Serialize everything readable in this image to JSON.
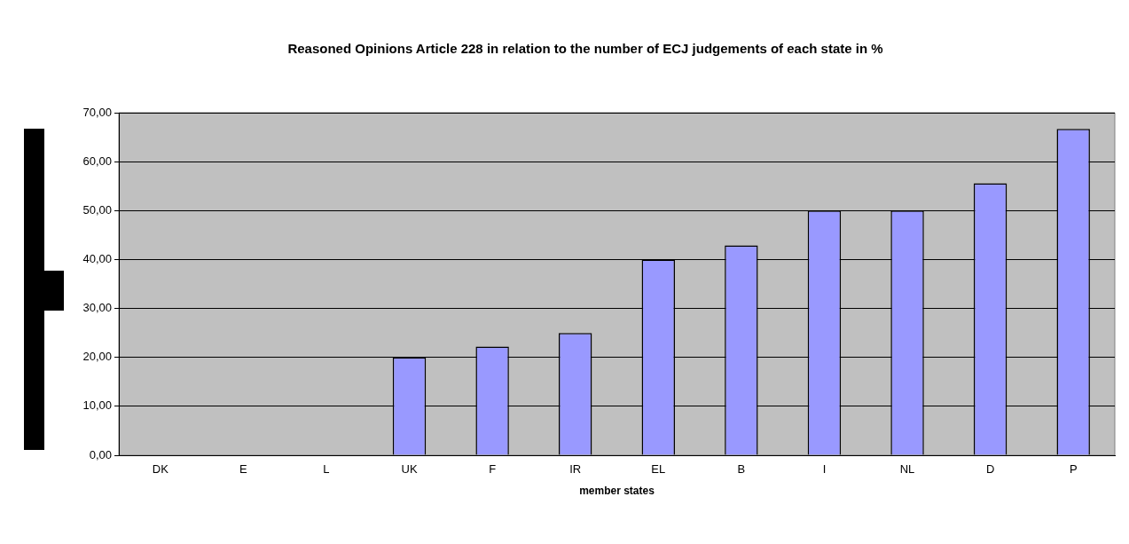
{
  "chart_data": {
    "type": "bar",
    "title": "Reasoned Opinions Article 228 in relation to the number of ECJ judgements of each state in %",
    "xlabel": "member states",
    "categories": [
      "DK",
      "E",
      "L",
      "UK",
      "F",
      "IR",
      "EL",
      "B",
      "I",
      "NL",
      "D",
      "P"
    ],
    "values": [
      0,
      0,
      0,
      20,
      22.2,
      25,
      40,
      42.9,
      50,
      50,
      55.6,
      66.7
    ],
    "color": "#9999ff",
    "ylim": [
      0,
      70
    ],
    "yticks": [
      {
        "value": 0,
        "label": "0,00"
      },
      {
        "value": 10,
        "label": "10,00"
      },
      {
        "value": 20,
        "label": "20,00"
      },
      {
        "value": 30,
        "label": "30,00"
      },
      {
        "value": 40,
        "label": "40,00"
      },
      {
        "value": 50,
        "label": "50,00"
      },
      {
        "value": 60,
        "label": "60,00"
      },
      {
        "value": 70,
        "label": "70,00"
      }
    ],
    "grid": "y",
    "legend": false
  }
}
